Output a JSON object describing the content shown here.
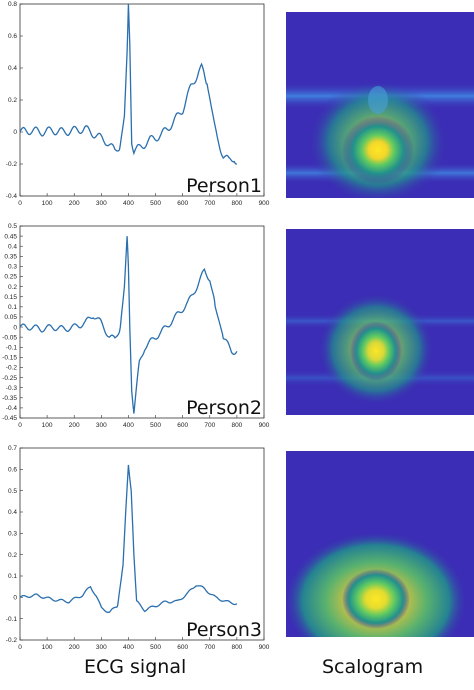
{
  "captions": {
    "left": "ECG signal",
    "right": "Scalogram"
  },
  "colors": {
    "line": "#2a6fae",
    "axis": "#333333",
    "scalogram_bg": "#3b2db5"
  },
  "chart_data": [
    {
      "type": "line",
      "label": "Person1",
      "xlim": [
        0,
        900
      ],
      "ylim": [
        -0.4,
        0.8
      ],
      "xticks": [
        0,
        100,
        200,
        300,
        400,
        500,
        600,
        700,
        800,
        900
      ],
      "yticks": [
        -0.4,
        -0.2,
        0,
        0.2,
        0.4,
        0.6,
        0.8
      ],
      "x": [
        0,
        40,
        80,
        120,
        160,
        200,
        240,
        280,
        320,
        350,
        370,
        385,
        395,
        400,
        405,
        412,
        420,
        440,
        480,
        520,
        560,
        600,
        630,
        660,
        670,
        690,
        710,
        730,
        750,
        770,
        790,
        800
      ],
      "y": [
        0,
        0.01,
        0.0,
        0.01,
        0.0,
        0.01,
        0.02,
        -0.02,
        -0.06,
        -0.12,
        -0.08,
        0.1,
        0.5,
        0.8,
        0.55,
        -0.05,
        -0.12,
        -0.1,
        -0.05,
        -0.02,
        0.05,
        0.14,
        0.28,
        0.38,
        0.4,
        0.3,
        0.12,
        -0.05,
        -0.15,
        -0.18,
        -0.16,
        -0.2
      ],
      "noise": 0.025
    },
    {
      "type": "line",
      "label": "Person2",
      "xlim": [
        0,
        900
      ],
      "ylim": [
        -0.45,
        0.5
      ],
      "xticks": [
        0,
        100,
        200,
        300,
        400,
        500,
        600,
        700,
        800,
        900
      ],
      "yticks": [
        -0.45,
        -0.4,
        -0.35,
        -0.3,
        -0.25,
        -0.2,
        -0.15,
        -0.1,
        -0.05,
        0,
        0.05,
        0.1,
        0.15,
        0.2,
        0.25,
        0.3,
        0.35,
        0.4,
        0.45,
        0.5
      ],
      "ytick_labels": [
        "-0.45",
        "-0.4",
        "-0.35",
        "-0.3",
        "-0.25",
        "-0.2",
        "-0.15",
        "-0.1",
        "-0.05",
        "0",
        "0.05",
        "0.1",
        "0.15",
        "0.2",
        "0.25",
        "0.3",
        "0.35",
        "0.4",
        "0.45",
        "0.5"
      ],
      "x": [
        0,
        40,
        80,
        120,
        160,
        200,
        240,
        270,
        300,
        330,
        350,
        370,
        385,
        395,
        400,
        405,
        412,
        420,
        430,
        440,
        460,
        500,
        540,
        580,
        620,
        660,
        680,
        700,
        720,
        750,
        780,
        800
      ],
      "y": [
        0,
        0.0,
        -0.01,
        0.0,
        -0.01,
        0.0,
        0.02,
        0.06,
        0.02,
        -0.05,
        -0.06,
        0.0,
        0.2,
        0.45,
        0.3,
        0.0,
        -0.3,
        -0.42,
        -0.3,
        -0.18,
        -0.1,
        -0.05,
        0.0,
        0.06,
        0.12,
        0.22,
        0.28,
        0.24,
        0.1,
        -0.05,
        -0.12,
        -0.12
      ],
      "noise": 0.015
    },
    {
      "type": "line",
      "label": "Person3",
      "xlim": [
        0,
        900
      ],
      "ylim": [
        -0.2,
        0.7
      ],
      "xticks": [
        0,
        100,
        200,
        300,
        400,
        500,
        600,
        700,
        800,
        900
      ],
      "yticks": [
        -0.2,
        -0.1,
        0,
        0.1,
        0.2,
        0.3,
        0.4,
        0.5,
        0.6,
        0.7
      ],
      "x": [
        0,
        60,
        120,
        180,
        230,
        260,
        280,
        300,
        330,
        360,
        380,
        390,
        400,
        410,
        420,
        430,
        460,
        500,
        540,
        580,
        620,
        650,
        680,
        720,
        760,
        800
      ],
      "y": [
        0.0,
        0.01,
        -0.01,
        -0.02,
        0.01,
        0.05,
        0.01,
        -0.05,
        -0.07,
        -0.04,
        0.15,
        0.4,
        0.62,
        0.5,
        0.2,
        -0.02,
        -0.06,
        -0.04,
        -0.02,
        -0.02,
        0.02,
        0.06,
        0.04,
        0.0,
        -0.02,
        -0.03
      ],
      "noise": 0.006
    }
  ]
}
